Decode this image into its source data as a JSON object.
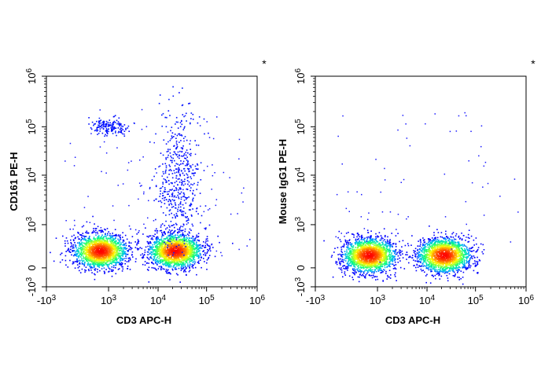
{
  "chart_data": [
    {
      "type": "scatter",
      "xlabel": "CD3 APC-H",
      "ylabel": "CD161 PE-H",
      "corner_mark": "*",
      "x_scale": "biexponential",
      "y_scale": "biexponential",
      "xlim": [
        -1000,
        1000000
      ],
      "ylim": [
        -1000,
        1000000
      ],
      "x_ticks": [
        {
          "base": "-10",
          "exp": "3",
          "value": -1000
        },
        {
          "base": "10",
          "exp": "3",
          "value": 1000
        },
        {
          "base": "10",
          "exp": "4",
          "value": 10000
        },
        {
          "base": "10",
          "exp": "5",
          "value": 100000
        },
        {
          "base": "10",
          "exp": "6",
          "value": 1000000
        }
      ],
      "y_ticks": [
        {
          "base": "-10",
          "exp": "3",
          "value": -1000
        },
        {
          "base": "0",
          "exp": "",
          "value": 0
        },
        {
          "base": "10",
          "exp": "3",
          "value": 1000
        },
        {
          "base": "10",
          "exp": "4",
          "value": 10000
        },
        {
          "base": "10",
          "exp": "5",
          "value": 100000
        },
        {
          "base": "10",
          "exp": "6",
          "value": 1000000
        }
      ],
      "populations": [
        {
          "x": 800,
          "y": 400,
          "density": "high"
        },
        {
          "x": 22000,
          "y": 400,
          "density": "high"
        },
        {
          "x": 1000,
          "y": 100000,
          "density": "medium"
        },
        {
          "x": 25000,
          "y": 8000,
          "density": "low"
        }
      ],
      "color_scale": [
        "#0000ff",
        "#00b4ff",
        "#00ff80",
        "#ffff00",
        "#ff0000"
      ]
    },
    {
      "type": "scatter",
      "xlabel": "CD3 APC-H",
      "ylabel": "Mouse IgG1 PE-H",
      "corner_mark": "*",
      "x_scale": "biexponential",
      "y_scale": "biexponential",
      "xlim": [
        -1000,
        1000000
      ],
      "ylim": [
        -1000,
        1000000
      ],
      "x_ticks": [
        {
          "base": "-10",
          "exp": "3",
          "value": -1000
        },
        {
          "base": "10",
          "exp": "3",
          "value": 1000
        },
        {
          "base": "10",
          "exp": "4",
          "value": 10000
        },
        {
          "base": "10",
          "exp": "5",
          "value": 100000
        },
        {
          "base": "10",
          "exp": "6",
          "value": 1000000
        }
      ],
      "y_ticks": [
        {
          "base": "-10",
          "exp": "3",
          "value": -1000
        },
        {
          "base": "0",
          "exp": "",
          "value": 0
        },
        {
          "base": "10",
          "exp": "3",
          "value": 1000
        },
        {
          "base": "10",
          "exp": "4",
          "value": 10000
        },
        {
          "base": "10",
          "exp": "5",
          "value": 100000
        },
        {
          "base": "10",
          "exp": "6",
          "value": 1000000
        }
      ],
      "populations": [
        {
          "x": 800,
          "y": 300,
          "density": "high"
        },
        {
          "x": 22000,
          "y": 300,
          "density": "high"
        }
      ],
      "color_scale": [
        "#0000ff",
        "#00b4ff",
        "#00ff80",
        "#ffff00",
        "#ff0000"
      ]
    }
  ]
}
